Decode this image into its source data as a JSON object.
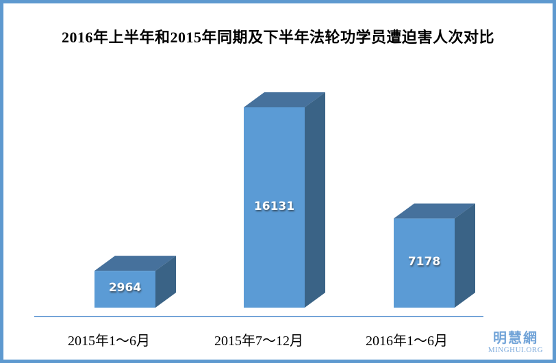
{
  "page": {
    "border_color": "#5E99CF",
    "background_color": "#FFFFFF"
  },
  "title": "2016年上半年和2015年同期及下半年法轮功学员遭迫害人次对比",
  "watermark": {
    "line1": "明慧網",
    "line2": "MINGHUI.ORG"
  },
  "chart_data": {
    "type": "bar",
    "style": "3d-box",
    "title": "2016年上半年和2015年同期及下半年法轮功学员遭迫害人次对比",
    "categories": [
      "2015年1～6月",
      "2015年7～12月",
      "2016年1～6月"
    ],
    "values": [
      2964,
      16131,
      7178
    ],
    "value_labels": [
      "2964",
      "16131",
      "7178"
    ],
    "xlabel": "",
    "ylabel": "",
    "ylim": [
      0,
      16131
    ],
    "grid": false,
    "legend": "none",
    "colors": {
      "bar_front": "#5B9BD5",
      "bar_top": "#46719C",
      "bar_side": "#3A6386",
      "axis_line": "#74A4D8",
      "value_text": "#FFFFFF",
      "label_text": "#000000"
    }
  }
}
